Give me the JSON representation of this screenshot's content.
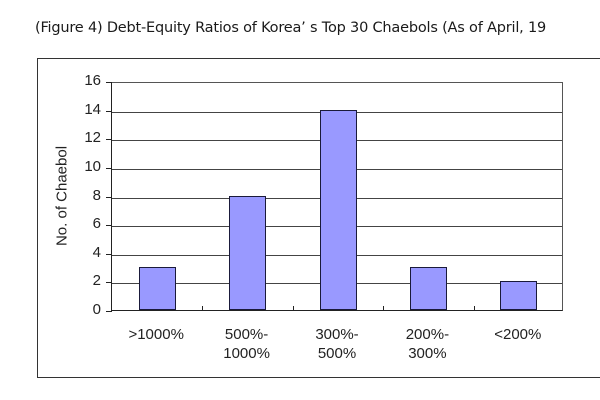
{
  "figure": {
    "title": "(Figure 4)  Debt-Equity Ratios of Korea’ s Top 30 Chaebols (As of April, 19"
  },
  "chart_data": {
    "type": "bar",
    "title": "Debt-Equity Ratios of Korea's Top 30 Chaebols (As of April, 19..)",
    "categories": [
      ">1000%",
      "500%-1000%",
      "300%-500%",
      "200%-300%",
      "<200%"
    ],
    "category_lines": [
      [
        ">1000%"
      ],
      [
        "500%-",
        "1000%"
      ],
      [
        "300%-",
        "500%"
      ],
      [
        "200%-",
        "300%"
      ],
      [
        "<200%"
      ]
    ],
    "values": [
      3,
      8,
      14,
      3,
      2
    ],
    "xlabel": "",
    "ylabel": "No. of Chaebol",
    "ylim": [
      0,
      16
    ],
    "yticks": [
      0,
      2,
      4,
      6,
      8,
      10,
      12,
      14,
      16
    ],
    "grid": true,
    "legend": null,
    "bar_color": "#9999ff"
  }
}
